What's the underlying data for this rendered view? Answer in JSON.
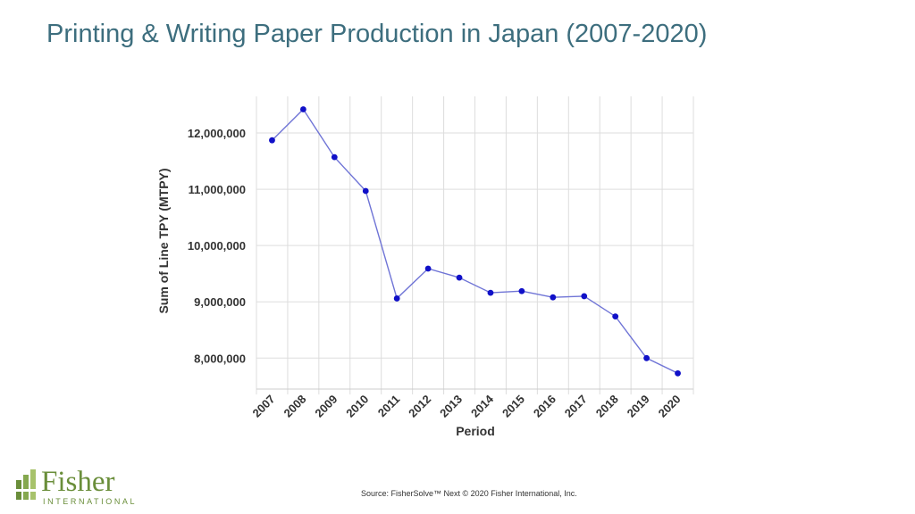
{
  "title": "Printing & Writing Paper Production in Japan (2007-2020)",
  "source": "Source: FisherSolve™ Next © 2020 Fisher International, Inc.",
  "logo": {
    "word": "Fisher",
    "sub": "INTERNATIONAL"
  },
  "colors": {
    "title": "#3d6e7e",
    "series": "#6f74d6",
    "marker": "#1010c8",
    "grid": "#dddddd",
    "logo": "#6a8e3a"
  },
  "chart_data": {
    "type": "line",
    "xlabel": "Period",
    "ylabel": "Sum of Line TPY (MTPY)",
    "categories": [
      "2007",
      "2008",
      "2009",
      "2010",
      "2011",
      "2012",
      "2013",
      "2014",
      "2015",
      "2016",
      "2017",
      "2018",
      "2019",
      "2020"
    ],
    "values": [
      11870000,
      12420000,
      11570000,
      10970000,
      9060000,
      9590000,
      9430000,
      9160000,
      9190000,
      9080000,
      9100000,
      8740000,
      8000000,
      7730000
    ],
    "ylim": [
      7450000,
      12650000
    ],
    "yticks": [
      8000000,
      9000000,
      10000000,
      11000000,
      12000000
    ],
    "ytick_labels": [
      "8,000,000",
      "9,000,000",
      "10,000,000",
      "11,000,000",
      "12,000,000"
    ],
    "grid": true,
    "legend": "none"
  }
}
